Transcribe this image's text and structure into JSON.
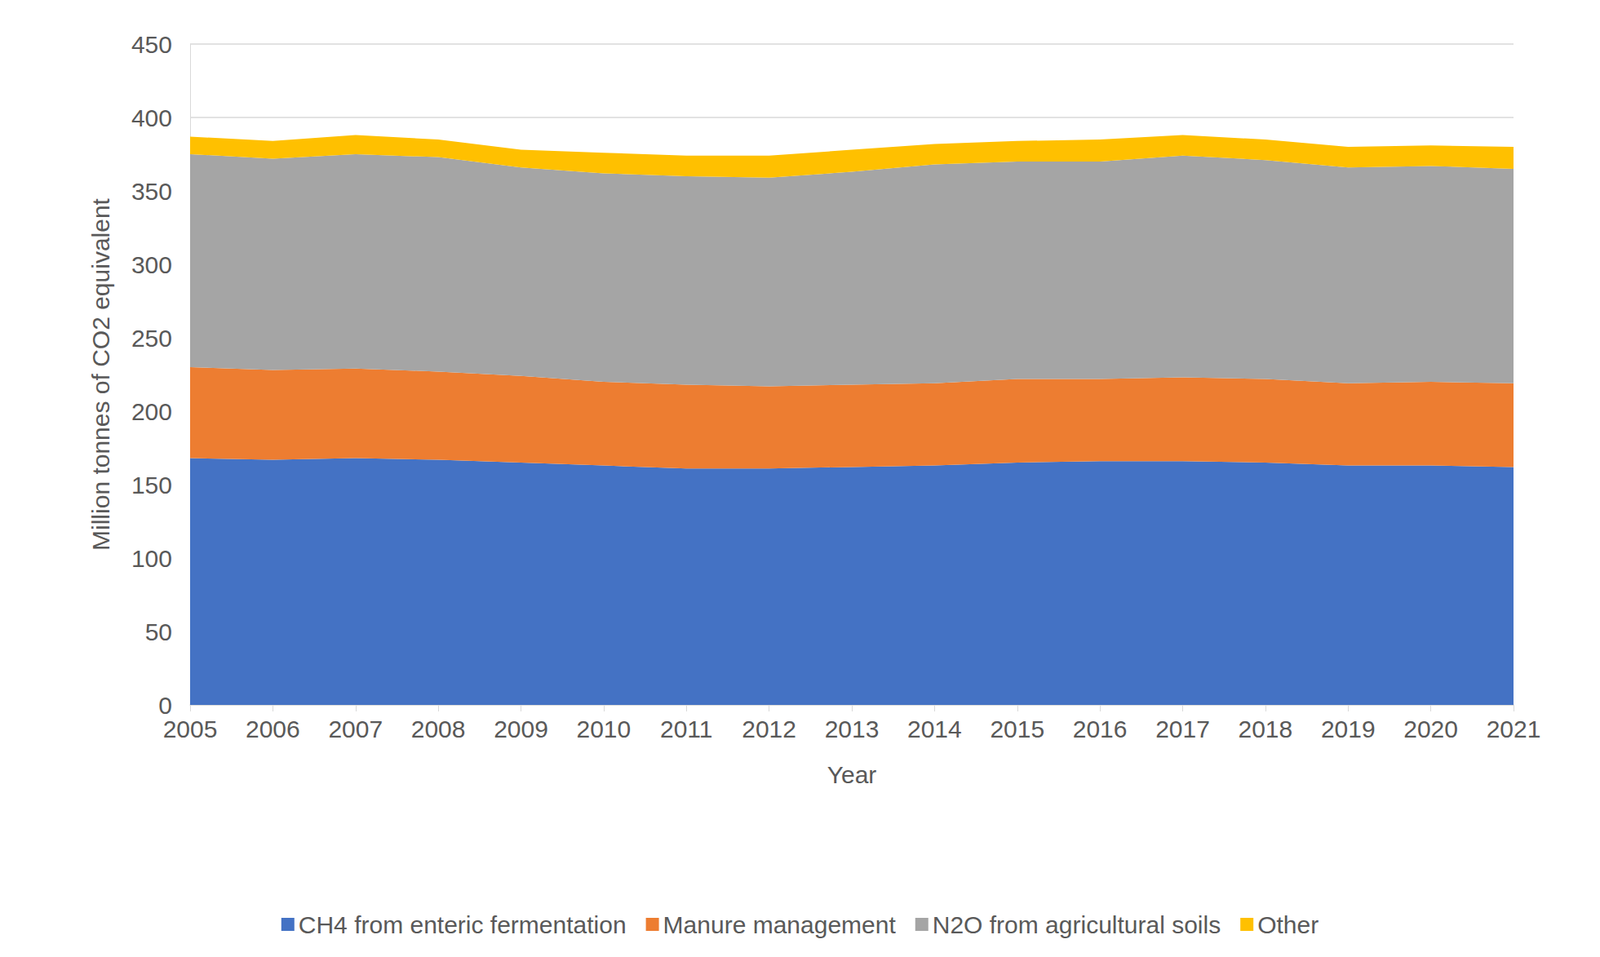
{
  "chart_data": {
    "type": "area",
    "stacked": true,
    "grid": true,
    "legend": "bottom",
    "x_label": "Year",
    "y_label": "Million tonnes of CO2 equivalent",
    "categories": [
      "2005",
      "2006",
      "2007",
      "2008",
      "2009",
      "2010",
      "2011",
      "2012",
      "2013",
      "2014",
      "2015",
      "2016",
      "2017",
      "2018",
      "2019",
      "2020",
      "2021"
    ],
    "ylim": [
      0,
      450
    ],
    "yticks": [
      0,
      50,
      100,
      150,
      200,
      250,
      300,
      350,
      400,
      450
    ],
    "series": [
      {
        "name": "CH4 from enteric fermentation",
        "color": "#4472c4",
        "values": [
          168,
          167,
          168,
          167,
          165,
          163,
          161,
          161,
          162,
          163,
          165,
          166,
          166,
          165,
          163,
          163,
          162
        ]
      },
      {
        "name": "Manure management",
        "color": "#ed7d31",
        "values": [
          62,
          61,
          61,
          60,
          59,
          57,
          57,
          56,
          56,
          56,
          57,
          56,
          57,
          57,
          56,
          57,
          57
        ]
      },
      {
        "name": "N2O from agricultural soils",
        "color": "#a5a5a5",
        "values": [
          145,
          144,
          146,
          146,
          142,
          142,
          142,
          142,
          145,
          149,
          148,
          148,
          151,
          149,
          147,
          147,
          146
        ]
      },
      {
        "name": "Other",
        "color": "#ffc000",
        "values": [
          12,
          12,
          13,
          12,
          12,
          14,
          14,
          15,
          15,
          14,
          14,
          15,
          14,
          14,
          14,
          14,
          15
        ]
      }
    ]
  }
}
